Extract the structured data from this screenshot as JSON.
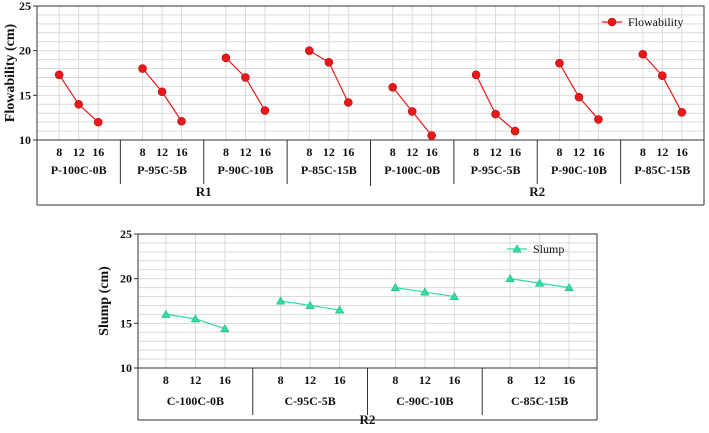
{
  "chart_data": [
    {
      "type": "line",
      "ylabel": "Flowability (cm)",
      "ylim": [
        10,
        25
      ],
      "yticks": [
        10,
        15,
        20,
        25
      ],
      "x_ticks": [
        "8",
        "12",
        "16"
      ],
      "color": "#e8191a",
      "marker": "circle",
      "legend": {
        "label": "Flowability",
        "placement": "top-right"
      },
      "super_groups": [
        "R1",
        "R2"
      ],
      "groups": [
        {
          "label": "P-100C-0B",
          "super": "R1",
          "values": [
            17.3,
            14.0,
            12.0
          ]
        },
        {
          "label": "P-95C-5B",
          "super": "R1",
          "values": [
            18.0,
            15.4,
            12.1
          ]
        },
        {
          "label": "P-90C-10B",
          "super": "R1",
          "values": [
            19.2,
            17.0,
            13.3
          ]
        },
        {
          "label": "P-85C-15B",
          "super": "R1",
          "values": [
            20.0,
            18.7,
            14.2
          ]
        },
        {
          "label": "P-100C-0B",
          "super": "R2",
          "values": [
            15.9,
            13.2,
            10.5
          ]
        },
        {
          "label": "P-95C-5B",
          "super": "R2",
          "values": [
            17.3,
            12.9,
            11.0
          ]
        },
        {
          "label": "P-90C-10B",
          "super": "R2",
          "values": [
            18.6,
            14.8,
            12.3
          ]
        },
        {
          "label": "P-85C-15B",
          "super": "R2",
          "values": [
            19.6,
            17.2,
            13.1
          ]
        }
      ]
    },
    {
      "type": "line",
      "ylabel": "Slump (cm)",
      "ylim": [
        10,
        25
      ],
      "yticks": [
        10,
        15,
        20,
        25
      ],
      "x_ticks": [
        "8",
        "12",
        "16"
      ],
      "color": "#2fdca6",
      "marker": "triangle",
      "legend": {
        "label": "Slump",
        "placement": "top-right"
      },
      "super_groups": [
        "R2"
      ],
      "groups": [
        {
          "label": "C-100C-0B",
          "super": "R2",
          "values": [
            16.0,
            15.5,
            14.4
          ]
        },
        {
          "label": "C-95C-5B",
          "super": "R2",
          "values": [
            17.5,
            17.0,
            16.5
          ]
        },
        {
          "label": "C-90C-10B",
          "super": "R2",
          "values": [
            19.0,
            18.5,
            18.0
          ]
        },
        {
          "label": "C-85C-15B",
          "super": "R2",
          "values": [
            20.0,
            19.5,
            19.0
          ]
        }
      ]
    }
  ]
}
